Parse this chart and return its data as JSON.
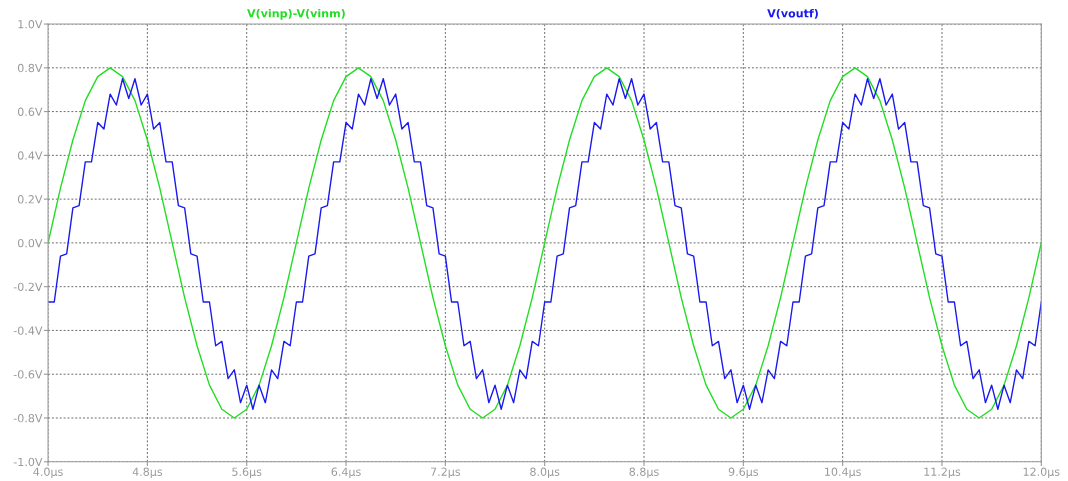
{
  "chart_data": {
    "type": "line",
    "xlim": [
      4.0,
      12.0
    ],
    "xticks": [
      {
        "value": 4.0,
        "label": "4.0µs"
      },
      {
        "value": 4.8,
        "label": "4.8µs"
      },
      {
        "value": 5.6,
        "label": "5.6µs"
      },
      {
        "value": 6.4,
        "label": "6.4µs"
      },
      {
        "value": 7.2,
        "label": "7.2µs"
      },
      {
        "value": 8.0,
        "label": "8.0µs"
      },
      {
        "value": 8.8,
        "label": "8.8µs"
      },
      {
        "value": 9.6,
        "label": "9.6µs"
      },
      {
        "value": 10.4,
        "label": "10.4µs"
      },
      {
        "value": 11.2,
        "label": "11.2µs"
      },
      {
        "value": 12.0,
        "label": "12.0µs"
      }
    ],
    "ylim": [
      -1.0,
      1.0
    ],
    "yticks": [
      {
        "value": -1.0,
        "label": "-1.0V"
      },
      {
        "value": -0.8,
        "label": "-0.8V"
      },
      {
        "value": -0.6,
        "label": "-0.6V"
      },
      {
        "value": -0.4,
        "label": "-0.4V"
      },
      {
        "value": -0.2,
        "label": "-0.2V"
      },
      {
        "value": 0.0,
        "label": "0.0V"
      },
      {
        "value": 0.2,
        "label": "0.2V"
      },
      {
        "value": 0.4,
        "label": "0.4V"
      },
      {
        "value": 0.6,
        "label": "0.6V"
      },
      {
        "value": 0.8,
        "label": "0.8V"
      },
      {
        "value": 1.0,
        "label": "1.0V"
      }
    ],
    "grid": true,
    "legend": "top",
    "marker": "none",
    "line_style": "solid",
    "series": [
      {
        "name": "V(vinp)-V(vinm)",
        "color": "#22dd22",
        "x": [
          4.0,
          4.1,
          4.2,
          4.3,
          4.4,
          4.5,
          4.6,
          4.7,
          4.8,
          4.9,
          5.0,
          5.1,
          5.2,
          5.3,
          5.4,
          5.5,
          5.6,
          5.7,
          5.8,
          5.9,
          6.0,
          6.1,
          6.2,
          6.3,
          6.4,
          6.5,
          6.6,
          6.7,
          6.8,
          6.9,
          7.0,
          7.1,
          7.2,
          7.3,
          7.4,
          7.5,
          7.6,
          7.7,
          7.8,
          7.9,
          8.0,
          8.1,
          8.2,
          8.3,
          8.4,
          8.5,
          8.6,
          8.7,
          8.8,
          8.9,
          9.0,
          9.1,
          9.2,
          9.3,
          9.4,
          9.5,
          9.6,
          9.7,
          9.8,
          9.9,
          10.0,
          10.1,
          10.2,
          10.3,
          10.4,
          10.5,
          10.6,
          10.7,
          10.8,
          10.9,
          11.0,
          11.1,
          11.2,
          11.3,
          11.4,
          11.5,
          11.6,
          11.7,
          11.8,
          11.9,
          12.0
        ],
        "values": [
          0,
          0.25,
          0.47,
          0.65,
          0.76,
          0.8,
          0.76,
          0.65,
          0.47,
          0.25,
          0,
          -0.25,
          -0.47,
          -0.65,
          -0.76,
          -0.8,
          -0.76,
          -0.65,
          -0.47,
          -0.25,
          0,
          0.25,
          0.47,
          0.65,
          0.76,
          0.8,
          0.76,
          0.65,
          0.47,
          0.25,
          0,
          -0.25,
          -0.47,
          -0.65,
          -0.76,
          -0.8,
          -0.76,
          -0.65,
          -0.47,
          -0.25,
          0,
          0.25,
          0.47,
          0.65,
          0.76,
          0.8,
          0.76,
          0.65,
          0.47,
          0.25,
          0,
          -0.25,
          -0.47,
          -0.65,
          -0.76,
          -0.8,
          -0.76,
          -0.65,
          -0.47,
          -0.25,
          0,
          0.25,
          0.47,
          0.65,
          0.76,
          0.8,
          0.76,
          0.65,
          0.47,
          0.25,
          0,
          -0.25,
          -0.47,
          -0.65,
          -0.76,
          -0.8,
          -0.76,
          -0.65,
          -0.47,
          -0.25,
          0
        ]
      },
      {
        "name": "V(voutf)",
        "color": "#1a1aee",
        "x": [
          4.0,
          4.05,
          4.1,
          4.15,
          4.2,
          4.25,
          4.3,
          4.35,
          4.4,
          4.45,
          4.5,
          4.55,
          4.6,
          4.65,
          4.7,
          4.75,
          4.8,
          4.85,
          4.9,
          4.95,
          5.0,
          5.05,
          5.1,
          5.15,
          5.2,
          5.25,
          5.3,
          5.35,
          5.4,
          5.45,
          5.5,
          5.55,
          5.6,
          5.65,
          5.7,
          5.75,
          5.8,
          5.85,
          5.9,
          5.95,
          6.0,
          6.05,
          6.1,
          6.15,
          6.2,
          6.25,
          6.3,
          6.35,
          6.4,
          6.45,
          6.5,
          6.55,
          6.6,
          6.65,
          6.7,
          6.75,
          6.8,
          6.85,
          6.9,
          6.95,
          7.0,
          7.05,
          7.1,
          7.15,
          7.2,
          7.25,
          7.3,
          7.35,
          7.4,
          7.45,
          7.5,
          7.55,
          7.6,
          7.65,
          7.7,
          7.75,
          7.8,
          7.85,
          7.9,
          7.95,
          8.0,
          8.05,
          8.1,
          8.15,
          8.2,
          8.25,
          8.3,
          8.35,
          8.4,
          8.45,
          8.5,
          8.55,
          8.6,
          8.65,
          8.7,
          8.75,
          8.8,
          8.85,
          8.9,
          8.95,
          9.0,
          9.05,
          9.1,
          9.15,
          9.2,
          9.25,
          9.3,
          9.35,
          9.4,
          9.45,
          9.5,
          9.55,
          9.6,
          9.65,
          9.7,
          9.75,
          9.8,
          9.85,
          9.9,
          9.95,
          10.0,
          10.05,
          10.1,
          10.15,
          10.2,
          10.25,
          10.3,
          10.35,
          10.4,
          10.45,
          10.5,
          10.55,
          10.6,
          10.65,
          10.7,
          10.75,
          10.8,
          10.85,
          10.9,
          10.95,
          11.0,
          11.05,
          11.1,
          11.15,
          11.2,
          11.25,
          11.3,
          11.35,
          11.4,
          11.45,
          11.5,
          11.55,
          11.6,
          11.65,
          11.7,
          11.75,
          11.8,
          11.85,
          11.9,
          11.95,
          12.0
        ],
        "values": [
          -0.27,
          -0.27,
          -0.06,
          -0.05,
          0.16,
          0.17,
          0.37,
          0.37,
          0.55,
          0.52,
          0.68,
          0.63,
          0.75,
          0.66,
          0.75,
          0.63,
          0.68,
          0.52,
          0.55,
          0.37,
          0.37,
          0.17,
          0.16,
          -0.05,
          -0.06,
          -0.27,
          -0.27,
          -0.47,
          -0.45,
          -0.62,
          -0.58,
          -0.73,
          -0.65,
          -0.76,
          -0.65,
          -0.73,
          -0.58,
          -0.62,
          -0.45,
          -0.47,
          -0.27,
          -0.27,
          -0.06,
          -0.05,
          0.16,
          0.17,
          0.37,
          0.37,
          0.55,
          0.52,
          0.68,
          0.63,
          0.75,
          0.66,
          0.75,
          0.63,
          0.68,
          0.52,
          0.55,
          0.37,
          0.37,
          0.17,
          0.16,
          -0.05,
          -0.06,
          -0.27,
          -0.27,
          -0.47,
          -0.45,
          -0.62,
          -0.58,
          -0.73,
          -0.65,
          -0.76,
          -0.65,
          -0.73,
          -0.58,
          -0.62,
          -0.45,
          -0.47,
          -0.27,
          -0.27,
          -0.06,
          -0.05,
          0.16,
          0.17,
          0.37,
          0.37,
          0.55,
          0.52,
          0.68,
          0.63,
          0.75,
          0.66,
          0.75,
          0.63,
          0.68,
          0.52,
          0.55,
          0.37,
          0.37,
          0.17,
          0.16,
          -0.05,
          -0.06,
          -0.27,
          -0.27,
          -0.47,
          -0.45,
          -0.62,
          -0.58,
          -0.73,
          -0.65,
          -0.76,
          -0.65,
          -0.73,
          -0.58,
          -0.62,
          -0.45,
          -0.47,
          -0.27,
          -0.27,
          -0.06,
          -0.05,
          0.16,
          0.17,
          0.37,
          0.37,
          0.55,
          0.52,
          0.68,
          0.63,
          0.75,
          0.66,
          0.75,
          0.63,
          0.68,
          0.52,
          0.55,
          0.37,
          0.37,
          0.17,
          0.16,
          -0.05,
          -0.06,
          -0.27,
          -0.27,
          -0.47,
          -0.45,
          -0.62,
          -0.58,
          -0.73,
          -0.65,
          -0.76,
          -0.65,
          -0.73,
          -0.58,
          -0.62,
          -0.45,
          -0.47,
          -0.27
        ]
      }
    ]
  }
}
